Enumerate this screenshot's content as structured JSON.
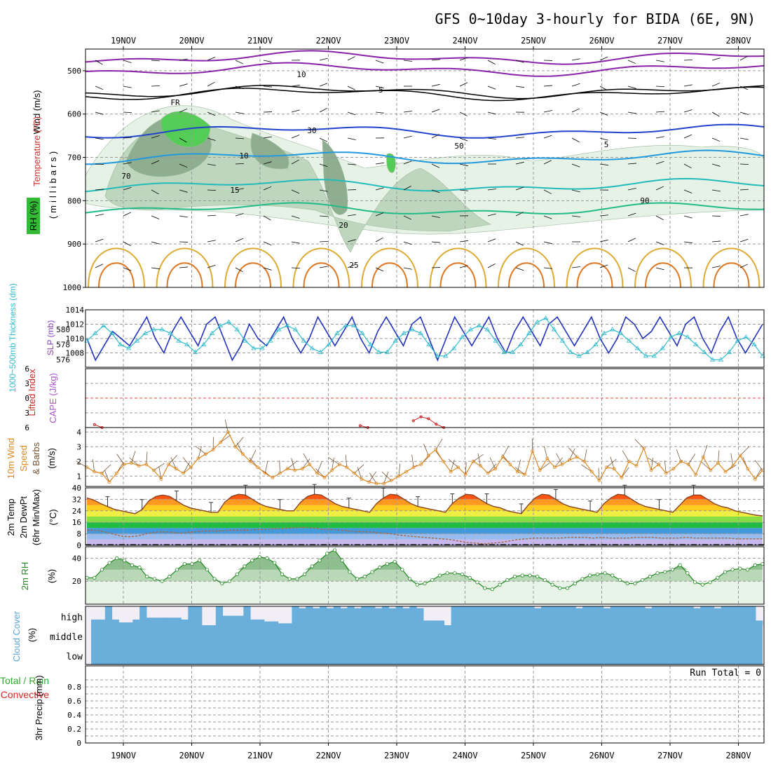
{
  "title": "GFS 0~10day 3-hourly for BIDA (6E, 9N)",
  "colors": {
    "rh_green_light": "#e6f2e6",
    "rh_green_mid": "#bdd6bd",
    "rh_green_dark": "#8fae8f",
    "rh_green_bright": "#55cc55",
    "slp": "#2233bb",
    "thickness": "#33bbcc",
    "cape": "#cc2222",
    "wind10": "#dd8822",
    "rh2m": "#228822",
    "cloud": "#6aaedc",
    "grid": "#999999"
  },
  "chart_data": [
    {
      "type": "contour",
      "panel": "upper-air",
      "x_dates": [
        "19NOV",
        "20NOV",
        "21NOV",
        "22NOV",
        "23NOV",
        "24NOV",
        "25NOV",
        "26NOV",
        "27NOV",
        "28NOV"
      ],
      "y_ticks": [
        "500",
        "600",
        "700",
        "800",
        "900",
        "1000"
      ],
      "y_axis_unit": "(millibars)",
      "y_labels": {
        "wind": "Wind (m/s)",
        "temperature": "Temperature (°C)",
        "rh": "RH (%)"
      },
      "isotherm_labels": [
        "-5",
        "FR",
        "5",
        "10",
        "15",
        "20",
        "25"
      ],
      "rh_labels": [
        "10",
        "30",
        "50",
        "70",
        "90"
      ]
    },
    {
      "type": "line",
      "panel": "slp-thickness",
      "series": [
        {
          "name": "SLP (mb)",
          "axis": "right",
          "values": [
            1010,
            1007,
            1009,
            1011,
            1010,
            1009,
            1011,
            1013,
            1010,
            1008,
            1011,
            1013,
            1011,
            1009,
            1012,
            1013,
            1010,
            1007,
            1009,
            1012,
            1010,
            1009,
            1011,
            1013,
            1010,
            1008,
            1010,
            1013,
            1011,
            1009,
            1011,
            1013,
            1010,
            1008,
            1011,
            1013,
            1011,
            1009,
            1012,
            1013,
            1010,
            1007,
            1010,
            1013,
            1011,
            1009,
            1011,
            1013,
            1010,
            1008,
            1011,
            1013,
            1011,
            1009,
            1012,
            1013,
            1011,
            1009,
            1011,
            1013,
            1010,
            1008,
            1010,
            1013,
            1012,
            1010,
            1011,
            1013,
            1011,
            1009,
            1012,
            1013,
            1010,
            1008,
            1011,
            1013,
            1010,
            1008,
            1010,
            1012
          ]
        },
        {
          "name": "1000-500mb Thickness (dm)",
          "axis": "left",
          "values": [
            578.5,
            579.5,
            580.5,
            579.5,
            578,
            577.5,
            578.5,
            579.5,
            580,
            580,
            579.5,
            578.5,
            578,
            577,
            578,
            579.5,
            580.5,
            581,
            580,
            578.5,
            577.5,
            577.5,
            578.5,
            580,
            580.5,
            580,
            578.5,
            577.5,
            577,
            578,
            579.5,
            580.5,
            580.5,
            579.5,
            578,
            577,
            577,
            578.5,
            579.5,
            580,
            579.5,
            578,
            576.5,
            576.5,
            577.5,
            579,
            580,
            580.5,
            580,
            578.5,
            577,
            577,
            578,
            579.5,
            581,
            581.5,
            580,
            578.5,
            577,
            576.5,
            577,
            578,
            579.5,
            580,
            579.5,
            578.5,
            577.5,
            576.5,
            576.5,
            577.5,
            579,
            579.5,
            579,
            578,
            577,
            576,
            576,
            577,
            578.5,
            579,
            578,
            576.5
          ]
        }
      ],
      "y_left_ticks": [
        "576",
        "578",
        "580"
      ],
      "y_right_ticks": [
        "1008",
        "1010",
        "1012",
        "1014"
      ],
      "y_labels": {
        "thickness": "1000~500mb Thickness (dm)",
        "slp": "SLP (mb)"
      },
      "left_range": [
        575,
        582.6
      ],
      "right_range": [
        1006,
        1014
      ]
    },
    {
      "type": "line",
      "panel": "lifted-index-cape",
      "y_ticks": [
        "-6",
        "-3",
        "0",
        "3",
        "6"
      ],
      "y_labels": {
        "li": "Lifted Index",
        "cape": "CAPE (J/kg)"
      },
      "range": [
        -6,
        6
      ],
      "reference_line": 0,
      "cape_blips": [
        {
          "i": 1,
          "v": 5.4
        },
        {
          "i": 2,
          "v": 6
        },
        {
          "i": 36,
          "v": 5.6
        },
        {
          "i": 37,
          "v": 6
        },
        {
          "i": 43,
          "v": 4.6
        },
        {
          "i": 44,
          "v": 3.8
        },
        {
          "i": 45,
          "v": 4.2
        },
        {
          "i": 46,
          "v": 5.3
        },
        {
          "i": 47,
          "v": 6
        }
      ]
    },
    {
      "type": "line",
      "panel": "wind10m",
      "series": [
        {
          "name": "10m Wind Speed (m/s)",
          "values": [
            1.6,
            1.3,
            1.2,
            0.6,
            1.2,
            1.8,
            1.9,
            1.7,
            1.8,
            1.4,
            0.8,
            1.8,
            1.5,
            1.2,
            1.6,
            2.2,
            2.5,
            2.8,
            3.3,
            4.0,
            3.0,
            2.5,
            2.0,
            1.6,
            1.2,
            0.9,
            1.2,
            1.5,
            1.4,
            1.5,
            1.8,
            1.2,
            0.9,
            1.4,
            1.8,
            1.6,
            1.2,
            0.8,
            0.6,
            0.5,
            0.5,
            0.7,
            1.0,
            1.3,
            1.6,
            1.8,
            2.4,
            2.8,
            2.0,
            1.3,
            1.6,
            1.1,
            2.0,
            1.7,
            1.2,
            1.5,
            2.3,
            1.8,
            1.3,
            1.1,
            2.7,
            1.4,
            2.2,
            1.6,
            1.8,
            2.1,
            2.3,
            2.0,
            1.3,
            0.7,
            1.6,
            1.5,
            0.9,
            2.0,
            1.7,
            2.9,
            1.4,
            1.8,
            1.2,
            1.5,
            2.0,
            1.8,
            1.1,
            2.3,
            1.4,
            1.9,
            1.3,
            1.7,
            2.4,
            1.5,
            0.8,
            1.4
          ]
        }
      ],
      "y_ticks": [
        "1",
        "2",
        "3",
        "4"
      ],
      "y_labels": {
        "wind": "10m Wind",
        "speed": "Speed",
        "barbs": "& Barbs",
        "unit": "(m/s)"
      },
      "range": [
        0.3,
        4.3
      ]
    },
    {
      "type": "area",
      "panel": "temperature",
      "series": [
        {
          "name": "2m Temp",
          "values": [
            33,
            31.5,
            29,
            27,
            25,
            24,
            23,
            22,
            25,
            31,
            34,
            35,
            34,
            31,
            28,
            26,
            25,
            24,
            23,
            23,
            30,
            34,
            35.5,
            35,
            32,
            29,
            27,
            26,
            25,
            24,
            24,
            30,
            34,
            35.5,
            35,
            32,
            29,
            27,
            26,
            25,
            24,
            23,
            29,
            33,
            35.5,
            35,
            32,
            29,
            27,
            26,
            25,
            24,
            23,
            29,
            33,
            35.5,
            35,
            32,
            29,
            27,
            26,
            24,
            23,
            22,
            28,
            33,
            35.5,
            35,
            32,
            29,
            27,
            26,
            25,
            24,
            23,
            29,
            33,
            35.5,
            35,
            32,
            29,
            27,
            26,
            25,
            24,
            23,
            28,
            33,
            35,
            35,
            32,
            29,
            27,
            26,
            24,
            23,
            22,
            21,
            20.5
          ]
        },
        {
          "name": "2m DewPt",
          "values": [
            10.5,
            10.5,
            9.5,
            8,
            6.5,
            6,
            6.5,
            8,
            9,
            9.5,
            9,
            8.5,
            9,
            9.5,
            10,
            10,
            10,
            10.5,
            10.5,
            10.5,
            11,
            11,
            11.5,
            11.5,
            12,
            12.5,
            12.5,
            12,
            11,
            11,
            10.5,
            10,
            9.5,
            9.5,
            9,
            8.5,
            8,
            7,
            6.5,
            6,
            5.5,
            5,
            4.5,
            4,
            3,
            2,
            1.5,
            1,
            1.5,
            2,
            3,
            4,
            4.5,
            5,
            5,
            5,
            5,
            5.5,
            5.5,
            5.5,
            5,
            5.5,
            5,
            5,
            5,
            5.5,
            5.5,
            5.5,
            5,
            5,
            5,
            5.5,
            5,
            5,
            5,
            5,
            5,
            4.5,
            4.5,
            4.5,
            4.5
          ]
        }
      ],
      "y_ticks": [
        "0",
        "8",
        "16",
        "24",
        "32",
        "40"
      ],
      "y_labels": {
        "temp": "2m Temp",
        "dewpt": "2m DewPt",
        "minmax": "(6hr Min/Max)",
        "unit": "(°C)"
      },
      "range": [
        0,
        40
      ]
    },
    {
      "type": "area",
      "panel": "rh2m",
      "series": [
        {
          "name": "2m RH (%)",
          "values": [
            23,
            23,
            30,
            36,
            40,
            38,
            34,
            32,
            24,
            22,
            20,
            24,
            30,
            35,
            35,
            38,
            30,
            22,
            18,
            20,
            26,
            33,
            38,
            41,
            40,
            36,
            26,
            22,
            22,
            26,
            33,
            38,
            44,
            47,
            38,
            28,
            22,
            24,
            28,
            32,
            35,
            37,
            30,
            22,
            17,
            18,
            21,
            25,
            27,
            27,
            26,
            23,
            19,
            14,
            13,
            17,
            21,
            24,
            25,
            25,
            24,
            21,
            17,
            14,
            14,
            18,
            22,
            25,
            26,
            27,
            25,
            21,
            18,
            18,
            21,
            24,
            27,
            28,
            30,
            34,
            27,
            19,
            17,
            19,
            23,
            28,
            30,
            31,
            30,
            34,
            35
          ]
        }
      ],
      "y_ticks": [
        "20",
        "40"
      ],
      "y_labels": {
        "rh": "2m RH",
        "unit": "(%)"
      },
      "range": [
        0,
        50
      ]
    },
    {
      "type": "bar",
      "panel": "cloud-cover",
      "y_ticks": [
        "high",
        "middle",
        "low"
      ],
      "y_labels": {
        "cloud": "Cloud Cover",
        "unit": "(%)"
      },
      "high_cloud_fraction": [
        0.3,
        0.3,
        1,
        0.3,
        0.15,
        0.15,
        0.3,
        1,
        0.4,
        0.4,
        0.4,
        0.4,
        0.4,
        0.3,
        1,
        1,
        0,
        0,
        1,
        0.5,
        0.5,
        0.5,
        1,
        0.3,
        0.3,
        0.2,
        0.2,
        0.1,
        0.1,
        1,
        0.9,
        1,
        0.9,
        1,
        0.9,
        1,
        0.9,
        1,
        0.9,
        1,
        1,
        0.9,
        1,
        0.9,
        1,
        0.9,
        1,
        0.9,
        0.25,
        0.25,
        0.25,
        0,
        1,
        1,
        1,
        1,
        1,
        1,
        1,
        1,
        1,
        1,
        1,
        1,
        0.9,
        1,
        1,
        1,
        1,
        1,
        0.9,
        1,
        1,
        1,
        0.9,
        1,
        1,
        1,
        1,
        1,
        0.9,
        1,
        1,
        1,
        1,
        1,
        1,
        0.9,
        1,
        1,
        0.9,
        1,
        1,
        1,
        1,
        1,
        0.25
      ]
    },
    {
      "type": "bar",
      "panel": "precip",
      "y_ticks": [
        "0",
        "0.2",
        "0.4",
        "0.6",
        "0.8"
      ],
      "y_labels": {
        "total": "Total / Rain",
        "convective": "Convective",
        "precip": "3hr Precip (mm)"
      },
      "range": [
        0,
        1
      ],
      "run_total": "Run Total = 0",
      "values": []
    }
  ]
}
